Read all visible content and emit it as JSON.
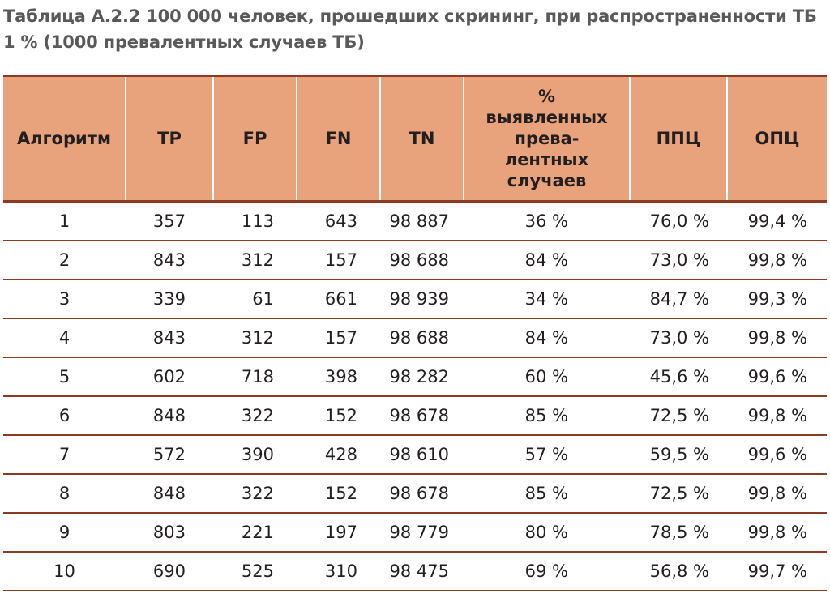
{
  "caption": "Таблица А.2.2 100 000 человек, прошедших скрининг, при распространенности ТБ 1 % (1000 превалентных случаев ТБ)",
  "header": {
    "algorithm": "Алгоритм",
    "tp": "TP",
    "fp": "FP",
    "fn": "FN",
    "tn": "TN",
    "detected": [
      "%",
      "выявленных",
      "прева-",
      "лентных",
      "случаев"
    ],
    "ppc": "ППЦ",
    "opc": "ОПЦ"
  },
  "rows": [
    {
      "algorithm": "1",
      "tp": "357",
      "fp": "113",
      "fn": "643",
      "tn": "98 887",
      "detected": "36 %",
      "ppc": "76,0 %",
      "opc": "99,4 %"
    },
    {
      "algorithm": "2",
      "tp": "843",
      "fp": "312",
      "fn": "157",
      "tn": "98 688",
      "detected": "84 %",
      "ppc": "73,0 %",
      "opc": "99,8 %"
    },
    {
      "algorithm": "3",
      "tp": "339",
      "fp": "61",
      "fn": "661",
      "tn": "98 939",
      "detected": "34 %",
      "ppc": "84,7 %",
      "opc": "99,3 %"
    },
    {
      "algorithm": "4",
      "tp": "843",
      "fp": "312",
      "fn": "157",
      "tn": "98 688",
      "detected": "84 %",
      "ppc": "73,0 %",
      "opc": "99,8 %"
    },
    {
      "algorithm": "5",
      "tp": "602",
      "fp": "718",
      "fn": "398",
      "tn": "98 282",
      "detected": "60 %",
      "ppc": "45,6 %",
      "opc": "99,6 %"
    },
    {
      "algorithm": "6",
      "tp": "848",
      "fp": "322",
      "fn": "152",
      "tn": "98 678",
      "detected": "85 %",
      "ppc": "72,5 %",
      "opc": "99,8 %"
    },
    {
      "algorithm": "7",
      "tp": "572",
      "fp": "390",
      "fn": "428",
      "tn": "98 610",
      "detected": "57 %",
      "ppc": "59,5 %",
      "opc": "99,6 %"
    },
    {
      "algorithm": "8",
      "tp": "848",
      "fp": "322",
      "fn": "152",
      "tn": "98 678",
      "detected": "85 %",
      "ppc": "72,5 %",
      "opc": "99,8 %"
    },
    {
      "algorithm": "9",
      "tp": "803",
      "fp": "221",
      "fn": "197",
      "tn": "98 779",
      "detected": "80 %",
      "ppc": "78,5 %",
      "opc": "99,8 %"
    },
    {
      "algorithm": "10",
      "tp": "690",
      "fp": "525",
      "fn": "310",
      "tn": "98 475",
      "detected": "69 %",
      "ppc": "56,8 %",
      "opc": "99,7 %"
    }
  ],
  "colors": {
    "header_fill": "#e8a27c",
    "rule": "#8a3b22",
    "caption_text": "#595959",
    "body_text": "#231f20"
  }
}
